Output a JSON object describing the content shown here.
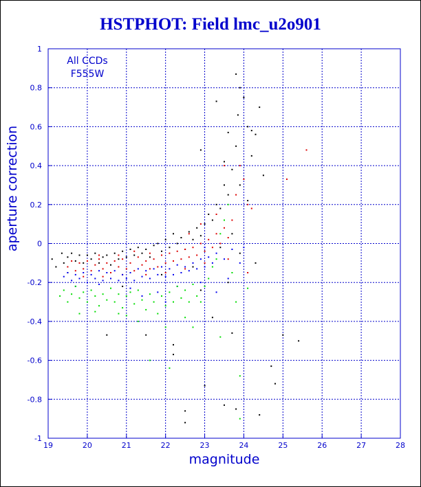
{
  "chart_data": {
    "type": "scatter",
    "title": "HSTPHOT: Field lmc_u2o901",
    "xlabel": "magnitude",
    "ylabel": "aperture correction",
    "xlim": [
      19,
      28
    ],
    "ylim": [
      -1,
      1
    ],
    "x_ticks": [
      "19",
      "20",
      "21",
      "22",
      "23",
      "24",
      "25",
      "26",
      "27",
      "28"
    ],
    "y_ticks": [
      "-1",
      "-0.8",
      "-0.6",
      "-0.4",
      "-0.2",
      "0",
      "0.2",
      "0.4",
      "0.6",
      "0.8",
      "1"
    ],
    "grid": true,
    "annotations": [
      "All CCDs",
      "F555W"
    ],
    "colors": {
      "axis": "#0000cc",
      "grid": "#0000cc",
      "text": "#0000cc"
    },
    "series": [
      {
        "color": "#000000",
        "points": [
          [
            19.1,
            -0.08
          ],
          [
            19.2,
            -0.12
          ],
          [
            19.35,
            -0.05
          ],
          [
            19.4,
            -0.1
          ],
          [
            19.5,
            -0.07
          ],
          [
            19.6,
            -0.05
          ],
          [
            19.7,
            -0.09
          ],
          [
            19.8,
            -0.06
          ],
          [
            19.9,
            -0.1
          ],
          [
            20.0,
            -0.06
          ],
          [
            20.1,
            -0.08
          ],
          [
            20.2,
            -0.05
          ],
          [
            20.3,
            -0.1
          ],
          [
            20.4,
            -0.07
          ],
          [
            20.5,
            -0.06
          ],
          [
            20.6,
            -0.11
          ],
          [
            20.7,
            -0.05
          ],
          [
            20.8,
            -0.08
          ],
          [
            20.9,
            -0.04
          ],
          [
            21.0,
            -0.07
          ],
          [
            21.1,
            -0.03
          ],
          [
            21.2,
            -0.06
          ],
          [
            21.3,
            -0.02
          ],
          [
            21.4,
            -0.05
          ],
          [
            21.5,
            -0.03
          ],
          [
            21.6,
            -0.07
          ],
          [
            21.7,
            -0.01
          ],
          [
            21.8,
            0.0
          ],
          [
            21.9,
            -0.04
          ],
          [
            22.0,
            0.02
          ],
          [
            22.1,
            -0.02
          ],
          [
            22.2,
            0.05
          ],
          [
            22.3,
            0.0
          ],
          [
            22.4,
            0.03
          ],
          [
            22.5,
            -0.03
          ],
          [
            22.6,
            0.06
          ],
          [
            22.7,
            0.02
          ],
          [
            22.8,
            0.08
          ],
          [
            22.9,
            0.04
          ],
          [
            23.0,
            0.1
          ],
          [
            23.1,
            0.15
          ],
          [
            23.2,
            0.12
          ],
          [
            23.3,
            0.2
          ],
          [
            23.4,
            0.18
          ],
          [
            23.5,
            0.3
          ],
          [
            23.6,
            0.25
          ],
          [
            23.7,
            0.38
          ],
          [
            23.8,
            0.5
          ],
          [
            23.85,
            0.66
          ],
          [
            23.9,
            0.8
          ],
          [
            23.8,
            0.87
          ],
          [
            24.0,
            0.75
          ],
          [
            24.1,
            0.6
          ],
          [
            24.2,
            0.45
          ],
          [
            24.3,
            0.56
          ],
          [
            24.4,
            0.7
          ],
          [
            24.5,
            0.35
          ],
          [
            24.2,
            0.58
          ],
          [
            23.6,
            0.57
          ],
          [
            23.3,
            0.73
          ],
          [
            21.5,
            -0.47
          ],
          [
            20.5,
            -0.47
          ],
          [
            22.2,
            -0.57
          ],
          [
            22.5,
            -0.86
          ],
          [
            22.5,
            -0.92
          ],
          [
            23.0,
            -0.73
          ],
          [
            23.5,
            -0.83
          ],
          [
            23.8,
            -0.85
          ],
          [
            24.4,
            -0.88
          ],
          [
            25.4,
            -0.5
          ],
          [
            25.0,
            -0.47
          ],
          [
            24.7,
            -0.63
          ],
          [
            24.8,
            -0.72
          ],
          [
            23.7,
            -0.46
          ],
          [
            22.2,
            -0.52
          ],
          [
            22.9,
            -0.24
          ],
          [
            23.2,
            -0.38
          ],
          [
            23.6,
            -0.2
          ],
          [
            24.3,
            -0.1
          ],
          [
            23.9,
            -0.05
          ],
          [
            23.4,
            -0.02
          ],
          [
            22.7,
            -0.12
          ],
          [
            21.9,
            -0.16
          ],
          [
            20.9,
            -0.22
          ],
          [
            19.5,
            -0.15
          ],
          [
            24.1,
            0.22
          ],
          [
            23.9,
            0.3
          ],
          [
            23.5,
            0.42
          ],
          [
            22.9,
            0.48
          ],
          [
            23.7,
            0.05
          ]
        ]
      },
      {
        "color": "#dd0000",
        "points": [
          [
            19.5,
            -0.12
          ],
          [
            19.6,
            -0.09
          ],
          [
            19.7,
            -0.14
          ],
          [
            19.8,
            -0.1
          ],
          [
            19.9,
            -0.13
          ],
          [
            20.0,
            -0.09
          ],
          [
            20.1,
            -0.14
          ],
          [
            20.2,
            -0.11
          ],
          [
            20.3,
            -0.08
          ],
          [
            20.4,
            -0.13
          ],
          [
            20.5,
            -0.1
          ],
          [
            20.6,
            -0.15
          ],
          [
            20.7,
            -0.09
          ],
          [
            20.8,
            -0.12
          ],
          [
            20.9,
            -0.08
          ],
          [
            21.0,
            -0.13
          ],
          [
            21.1,
            -0.1
          ],
          [
            21.2,
            -0.14
          ],
          [
            21.3,
            -0.07
          ],
          [
            21.4,
            -0.11
          ],
          [
            21.5,
            -0.09
          ],
          [
            21.6,
            -0.13
          ],
          [
            21.7,
            -0.08
          ],
          [
            21.8,
            -0.12
          ],
          [
            21.9,
            -0.06
          ],
          [
            22.0,
            -0.1
          ],
          [
            22.1,
            -0.05
          ],
          [
            22.2,
            -0.09
          ],
          [
            22.3,
            -0.04
          ],
          [
            22.4,
            -0.08
          ],
          [
            22.5,
            -0.03
          ],
          [
            22.6,
            -0.07
          ],
          [
            22.7,
            -0.02
          ],
          [
            22.8,
            -0.06
          ],
          [
            22.9,
            0.0
          ],
          [
            23.0,
            -0.04
          ],
          [
            23.1,
            0.02
          ],
          [
            23.2,
            -0.02
          ],
          [
            23.3,
            0.05
          ],
          [
            23.4,
            0.0
          ],
          [
            23.5,
            0.08
          ],
          [
            23.6,
            0.03
          ],
          [
            23.7,
            0.12
          ],
          [
            23.8,
            0.25
          ],
          [
            23.9,
            0.4
          ],
          [
            24.0,
            0.33
          ],
          [
            24.1,
            0.2
          ],
          [
            23.5,
            0.4
          ],
          [
            25.6,
            0.48
          ],
          [
            25.1,
            0.33
          ],
          [
            24.2,
            0.18
          ],
          [
            23.3,
            0.15
          ],
          [
            22.9,
            0.1
          ],
          [
            22.6,
            0.05
          ],
          [
            21.6,
            -0.05
          ],
          [
            21.2,
            -0.04
          ],
          [
            20.8,
            -0.06
          ],
          [
            20.3,
            -0.06
          ],
          [
            19.9,
            -0.17
          ],
          [
            20.4,
            -0.17
          ],
          [
            20.9,
            -0.16
          ],
          [
            21.5,
            -0.16
          ],
          [
            22.0,
            -0.15
          ],
          [
            22.5,
            -0.13
          ],
          [
            23.0,
            -0.1
          ],
          [
            23.6,
            -0.08
          ],
          [
            24.1,
            -0.15
          ]
        ]
      },
      {
        "color": "#0000ee",
        "points": [
          [
            19.4,
            -0.17
          ],
          [
            19.5,
            -0.15
          ],
          [
            19.6,
            -0.19
          ],
          [
            19.7,
            -0.16
          ],
          [
            19.8,
            -0.18
          ],
          [
            19.9,
            -0.15
          ],
          [
            20.0,
            -0.2
          ],
          [
            20.1,
            -0.16
          ],
          [
            20.2,
            -0.18
          ],
          [
            20.3,
            -0.14
          ],
          [
            20.4,
            -0.19
          ],
          [
            20.5,
            -0.15
          ],
          [
            20.6,
            -0.18
          ],
          [
            20.7,
            -0.14
          ],
          [
            20.8,
            -0.19
          ],
          [
            20.9,
            -0.16
          ],
          [
            21.0,
            -0.18
          ],
          [
            21.1,
            -0.15
          ],
          [
            21.2,
            -0.19
          ],
          [
            21.3,
            -0.13
          ],
          [
            21.4,
            -0.17
          ],
          [
            21.5,
            -0.14
          ],
          [
            21.6,
            -0.18
          ],
          [
            21.7,
            -0.13
          ],
          [
            21.8,
            -0.16
          ],
          [
            21.9,
            -0.12
          ],
          [
            22.0,
            -0.17
          ],
          [
            22.1,
            -0.13
          ],
          [
            22.2,
            -0.16
          ],
          [
            22.3,
            -0.11
          ],
          [
            22.4,
            -0.15
          ],
          [
            22.5,
            -0.12
          ],
          [
            22.6,
            -0.14
          ],
          [
            22.7,
            -0.1
          ],
          [
            22.8,
            -0.13
          ],
          [
            22.9,
            -0.08
          ],
          [
            23.0,
            -0.12
          ],
          [
            23.1,
            -0.07
          ],
          [
            23.2,
            -0.1
          ],
          [
            23.3,
            -0.05
          ],
          [
            23.5,
            -0.08
          ],
          [
            23.7,
            -0.03
          ],
          [
            23.9,
            -0.1
          ],
          [
            21.8,
            -0.25
          ],
          [
            22.3,
            -0.22
          ],
          [
            22.9,
            -0.2
          ],
          [
            23.3,
            -0.25
          ],
          [
            21.1,
            -0.23
          ],
          [
            20.3,
            -0.21
          ],
          [
            19.7,
            -0.22
          ],
          [
            22.0,
            -0.3
          ],
          [
            21.4,
            -0.27
          ],
          [
            23.6,
            -0.18
          ],
          [
            24.0,
            -0.02
          ],
          [
            23.0,
            -0.02
          ]
        ]
      },
      {
        "color": "#00dd00",
        "points": [
          [
            19.3,
            -0.27
          ],
          [
            19.4,
            -0.24
          ],
          [
            19.5,
            -0.3
          ],
          [
            19.6,
            -0.26
          ],
          [
            19.7,
            -0.22
          ],
          [
            19.8,
            -0.28
          ],
          [
            19.9,
            -0.25
          ],
          [
            20.0,
            -0.3
          ],
          [
            20.1,
            -0.24
          ],
          [
            20.2,
            -0.27
          ],
          [
            20.3,
            -0.32
          ],
          [
            20.4,
            -0.26
          ],
          [
            20.5,
            -0.29
          ],
          [
            20.6,
            -0.23
          ],
          [
            20.7,
            -0.3
          ],
          [
            20.8,
            -0.26
          ],
          [
            20.9,
            -0.33
          ],
          [
            21.0,
            -0.27
          ],
          [
            21.1,
            -0.25
          ],
          [
            21.2,
            -0.31
          ],
          [
            21.3,
            -0.24
          ],
          [
            21.4,
            -0.29
          ],
          [
            21.5,
            -0.34
          ],
          [
            21.6,
            -0.26
          ],
          [
            21.7,
            -0.3
          ],
          [
            21.8,
            -0.36
          ],
          [
            21.9,
            -0.27
          ],
          [
            22.0,
            -0.32
          ],
          [
            22.1,
            -0.25
          ],
          [
            22.2,
            -0.3
          ],
          [
            22.3,
            -0.22
          ],
          [
            22.4,
            -0.28
          ],
          [
            22.5,
            -0.24
          ],
          [
            22.6,
            -0.3
          ],
          [
            22.7,
            -0.21
          ],
          [
            22.8,
            -0.27
          ],
          [
            22.9,
            -0.3
          ],
          [
            23.0,
            -0.22
          ],
          [
            23.1,
            -0.18
          ],
          [
            23.2,
            -0.12
          ],
          [
            23.3,
            -0.08
          ],
          [
            23.4,
            0.05
          ],
          [
            23.5,
            0.12
          ],
          [
            23.6,
            0.2
          ],
          [
            23.7,
            -0.15
          ],
          [
            23.8,
            -0.3
          ],
          [
            21.6,
            -0.6
          ],
          [
            22.0,
            -0.43
          ],
          [
            21.3,
            -0.4
          ],
          [
            22.7,
            -0.43
          ],
          [
            23.4,
            -0.48
          ],
          [
            23.9,
            -0.68
          ],
          [
            23.9,
            -0.9
          ],
          [
            22.1,
            -0.64
          ],
          [
            20.8,
            -0.36
          ],
          [
            19.8,
            -0.36
          ],
          [
            24.1,
            -0.23
          ],
          [
            22.5,
            -0.38
          ],
          [
            21.0,
            -0.37
          ],
          [
            20.2,
            -0.35
          ]
        ]
      }
    ]
  }
}
